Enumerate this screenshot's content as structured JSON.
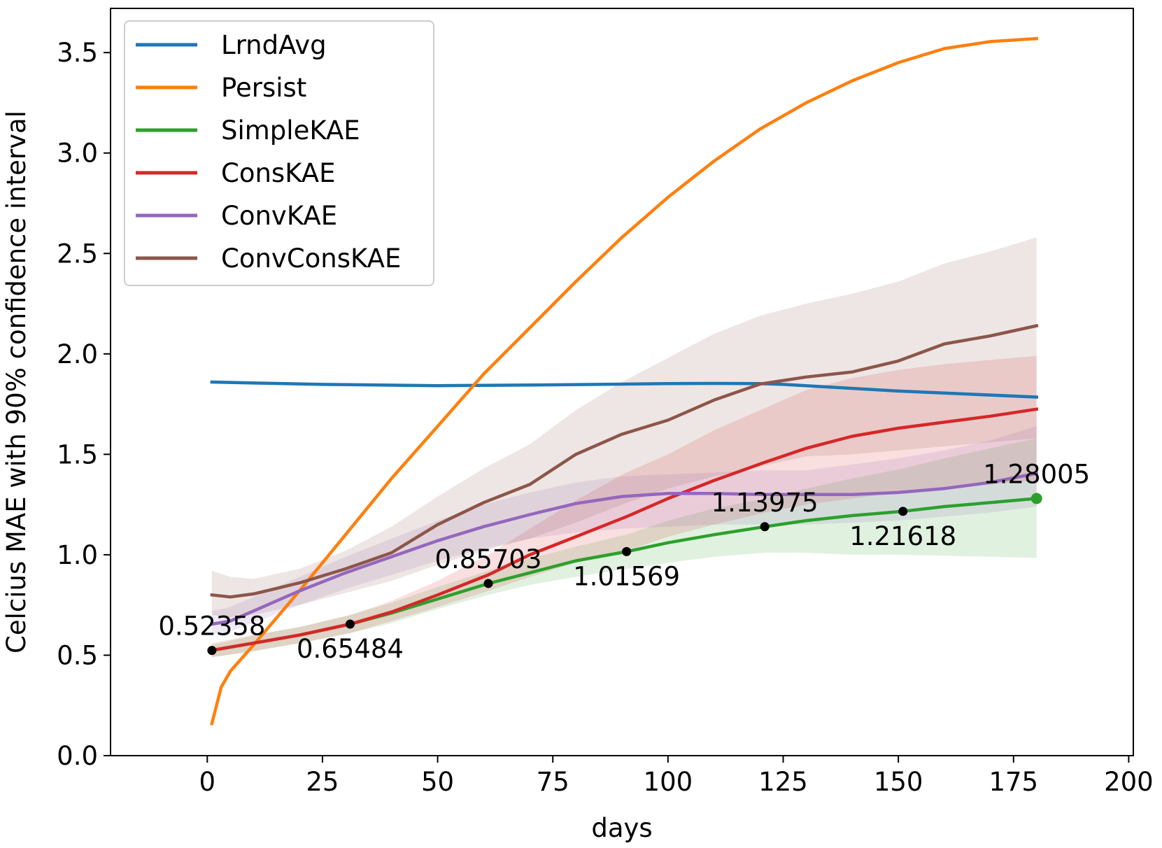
{
  "chart_data": {
    "type": "line",
    "title": "",
    "xlabel": "days",
    "ylabel": "Celcius MAE with 90% confidence interval",
    "xlim": [
      -21,
      201
    ],
    "ylim": [
      0.0,
      3.72
    ],
    "xticks": [
      0,
      25,
      50,
      75,
      100,
      125,
      150,
      175,
      200
    ],
    "xtick_labels": [
      "0",
      "25",
      "50",
      "75",
      "100",
      "125",
      "150",
      "175",
      "200"
    ],
    "yticks": [
      0.0,
      0.5,
      1.0,
      1.5,
      2.0,
      2.5,
      3.0,
      3.5
    ],
    "ytick_labels": [
      "0.0",
      "0.5",
      "1.0",
      "1.5",
      "2.0",
      "2.5",
      "3.0",
      "3.5"
    ],
    "grid": false,
    "legend_position": "top-left",
    "series": [
      {
        "name": "LrndAvg",
        "color": "#1f77b4",
        "x": [
          1,
          10,
          25,
          50,
          75,
          100,
          110,
          120,
          125,
          150,
          180
        ],
        "y": [
          1.86,
          1.855,
          1.848,
          1.842,
          1.846,
          1.852,
          1.853,
          1.852,
          1.848,
          1.815,
          1.785
        ]
      },
      {
        "name": "Persist",
        "color": "#ff7f0e",
        "x": [
          1,
          3,
          5,
          10,
          20,
          30,
          40,
          50,
          60,
          70,
          80,
          90,
          100,
          110,
          120,
          130,
          140,
          150,
          160,
          170,
          180
        ],
        "y": [
          0.16,
          0.34,
          0.42,
          0.55,
          0.82,
          1.1,
          1.38,
          1.64,
          1.9,
          2.13,
          2.36,
          2.58,
          2.78,
          2.96,
          3.12,
          3.25,
          3.36,
          3.45,
          3.52,
          3.555,
          3.57
        ]
      },
      {
        "name": "SimpleKAE",
        "color": "#2ca02c",
        "x": [
          1,
          10,
          20,
          31,
          40,
          50,
          61,
          70,
          80,
          91,
          100,
          110,
          121,
          130,
          140,
          151,
          160,
          170,
          180
        ],
        "y": [
          0.5236,
          0.56,
          0.6,
          0.6548,
          0.71,
          0.78,
          0.857,
          0.91,
          0.97,
          1.0157,
          1.06,
          1.1,
          1.1398,
          1.17,
          1.195,
          1.2162,
          1.24,
          1.26,
          1.28
        ],
        "band_low": [
          0.49,
          0.52,
          0.56,
          0.61,
          0.66,
          0.73,
          0.8,
          0.85,
          0.89,
          0.93,
          0.96,
          0.99,
          1.01,
          1.01,
          1.0,
          1.0,
          0.995,
          0.99,
          0.985
        ],
        "band_high": [
          0.55,
          0.6,
          0.64,
          0.7,
          0.76,
          0.84,
          0.92,
          0.98,
          1.04,
          1.1,
          1.17,
          1.23,
          1.28,
          1.33,
          1.38,
          1.43,
          1.48,
          1.53,
          1.58
        ]
      },
      {
        "name": "ConsKAE",
        "color": "#d62728",
        "x": [
          1,
          10,
          20,
          31,
          40,
          50,
          61,
          70,
          80,
          91,
          100,
          110,
          121,
          130,
          140,
          150,
          160,
          170,
          180
        ],
        "y": [
          0.525,
          0.56,
          0.6,
          0.655,
          0.715,
          0.8,
          0.9,
          1.0,
          1.09,
          1.19,
          1.28,
          1.37,
          1.46,
          1.53,
          1.59,
          1.63,
          1.66,
          1.69,
          1.725
        ],
        "band_low": [
          0.49,
          0.52,
          0.56,
          0.61,
          0.67,
          0.74,
          0.82,
          0.89,
          0.96,
          1.02,
          1.09,
          1.15,
          1.21,
          1.25,
          1.28,
          1.31,
          1.33,
          1.35,
          1.37
        ],
        "band_high": [
          0.56,
          0.6,
          0.64,
          0.7,
          0.77,
          0.87,
          1.0,
          1.13,
          1.27,
          1.41,
          1.5,
          1.62,
          1.73,
          1.82,
          1.88,
          1.92,
          1.95,
          1.97,
          1.99
        ]
      },
      {
        "name": "ConvKAE",
        "color": "#9467bd",
        "x": [
          1,
          5,
          10,
          20,
          30,
          40,
          50,
          60,
          70,
          80,
          90,
          100,
          110,
          120,
          130,
          140,
          150,
          160,
          170,
          180
        ],
        "y": [
          0.655,
          0.67,
          0.72,
          0.82,
          0.91,
          0.99,
          1.07,
          1.14,
          1.2,
          1.255,
          1.29,
          1.305,
          1.305,
          1.3,
          1.3,
          1.3,
          1.31,
          1.33,
          1.36,
          1.405
        ],
        "band_low": [
          0.6,
          0.62,
          0.66,
          0.75,
          0.83,
          0.9,
          0.97,
          1.03,
          1.08,
          1.11,
          1.13,
          1.14,
          1.15,
          1.15,
          1.15,
          1.16,
          1.17,
          1.19,
          1.21,
          1.24
        ],
        "band_high": [
          0.72,
          0.74,
          0.79,
          0.89,
          0.99,
          1.08,
          1.17,
          1.25,
          1.31,
          1.36,
          1.39,
          1.4,
          1.41,
          1.42,
          1.42,
          1.45,
          1.48,
          1.52,
          1.57,
          1.64
        ]
      },
      {
        "name": "ConvConsKAE",
        "color": "#8c564b",
        "x": [
          1,
          5,
          10,
          20,
          30,
          40,
          50,
          60,
          70,
          80,
          90,
          100,
          110,
          120,
          130,
          140,
          150,
          160,
          170,
          180
        ],
        "y": [
          0.8,
          0.79,
          0.805,
          0.86,
          0.93,
          1.01,
          1.15,
          1.26,
          1.35,
          1.5,
          1.6,
          1.67,
          1.77,
          1.85,
          1.885,
          1.91,
          1.965,
          2.05,
          2.09,
          2.14
        ],
        "band_low": [
          0.7,
          0.69,
          0.7,
          0.75,
          0.81,
          0.87,
          0.95,
          1.02,
          1.08,
          1.16,
          1.25,
          1.33,
          1.39,
          1.44,
          1.49,
          1.5,
          1.52,
          1.54,
          1.56,
          1.58
        ],
        "band_high": [
          0.92,
          0.89,
          0.88,
          0.93,
          1.02,
          1.14,
          1.29,
          1.43,
          1.55,
          1.72,
          1.86,
          1.98,
          2.1,
          2.19,
          2.25,
          2.3,
          2.36,
          2.45,
          2.51,
          2.58
        ]
      }
    ],
    "annotations": [
      {
        "x": 1,
        "y": 0.52358,
        "label": "0.52358",
        "anchor": "above"
      },
      {
        "x": 31,
        "y": 0.65484,
        "label": "0.65484",
        "anchor": "below"
      },
      {
        "x": 61,
        "y": 0.85703,
        "label": "0.85703",
        "anchor": "above"
      },
      {
        "x": 91,
        "y": 1.01569,
        "label": "1.01569",
        "anchor": "below"
      },
      {
        "x": 121,
        "y": 1.13975,
        "label": "1.13975",
        "anchor": "above"
      },
      {
        "x": 151,
        "y": 1.21618,
        "label": "1.21618",
        "anchor": "below"
      },
      {
        "x": 180,
        "y": 1.28005,
        "label": "1.28005",
        "anchor": "above",
        "highlight": "#2ca02c"
      }
    ]
  }
}
